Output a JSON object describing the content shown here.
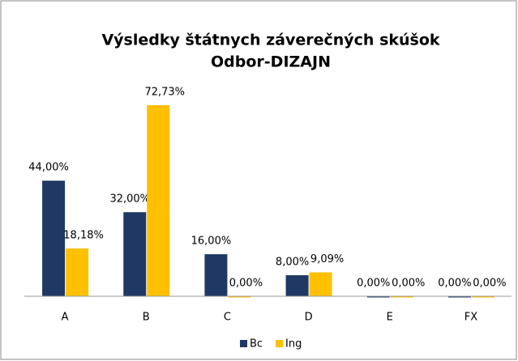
{
  "chart_data": {
    "type": "bar",
    "title": "Výsledky štátnych záverečných skúšok",
    "subtitle": "Odbor-DIZAJN",
    "categories": [
      "A",
      "B",
      "C",
      "D",
      "E",
      "FX"
    ],
    "series": [
      {
        "name": "Bc",
        "color": "#1f3864",
        "values": [
          44,
          32,
          16,
          8,
          0,
          0
        ],
        "value_labels": [
          "44,00%",
          "32,00%",
          "16,00%",
          "8,00%",
          "0,00%",
          "0,00%"
        ]
      },
      {
        "name": "Ing",
        "color": "#ffc000",
        "values": [
          18.18,
          72.73,
          0,
          9.09,
          0,
          0
        ],
        "value_labels": [
          "18,18%",
          "72,73%",
          "0,00%",
          "9,09%",
          "0,00%",
          "0,00%"
        ]
      }
    ],
    "legend": "bottom"
  }
}
